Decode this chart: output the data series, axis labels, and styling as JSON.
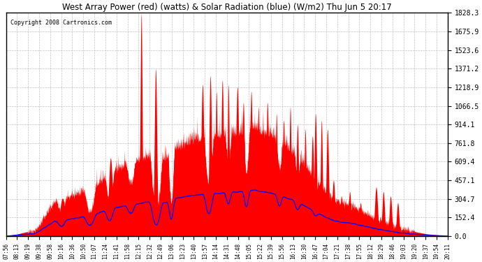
{
  "title": "West Array Power (red) (watts) & Solar Radiation (blue) (W/m2) Thu Jun 5 20:17",
  "copyright": "Copyright 2008 Cartronics.com",
  "background_color": "#ffffff",
  "plot_bg_color": "#ffffff",
  "grid_color": "#aaaaaa",
  "x_tick_labels": [
    "07:56",
    "08:13",
    "09:19",
    "09:38",
    "09:58",
    "10:16",
    "10:36",
    "10:50",
    "11:07",
    "11:24",
    "11:41",
    "11:58",
    "12:15",
    "12:32",
    "12:49",
    "13:06",
    "13:23",
    "13:40",
    "13:57",
    "14:14",
    "14:31",
    "14:48",
    "15:05",
    "15:22",
    "15:39",
    "15:56",
    "16:13",
    "16:30",
    "16:47",
    "17:04",
    "17:21",
    "17:38",
    "17:55",
    "18:12",
    "18:29",
    "18:46",
    "19:03",
    "19:20",
    "19:37",
    "19:54",
    "20:11"
  ],
  "y_ticks": [
    0.0,
    152.4,
    304.7,
    457.1,
    609.4,
    761.8,
    914.1,
    1066.5,
    1218.9,
    1371.2,
    1523.6,
    1675.9,
    1828.3
  ],
  "y_max": 1828.3,
  "y_min": 0.0,
  "power_color": "#ff0000",
  "radiation_color": "#0000ff"
}
